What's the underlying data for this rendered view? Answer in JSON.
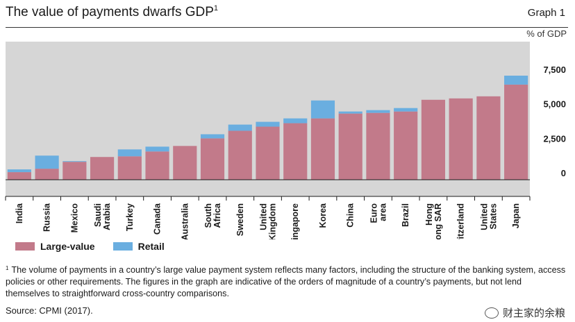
{
  "header": {
    "title": "The value of payments dwarfs GDP",
    "title_sup": "1",
    "graph_label": "Graph 1",
    "unit": "% of GDP"
  },
  "legend": [
    {
      "label": "Large-value",
      "color": "#c27a8a"
    },
    {
      "label": "Retail",
      "color": "#6aaee0"
    }
  ],
  "footnote": {
    "marker": "1",
    "text": "The volume of payments in a country’s large value payment system reflects many factors, including the structure of the banking system, access policies or other requirements. The figures in the graph are indicative of the orders of magnitude of a country’s payments, but not lend themselves to straightforward cross-country comparisons."
  },
  "source": "Source: CPMI (2017).",
  "watermark": "财主家的余粮",
  "colors": {
    "plot_bg": "#d6d6d6",
    "large_value": "#c27a8a",
    "retail": "#6aaee0"
  },
  "chart_data": {
    "type": "bar",
    "stacked": true,
    "title": "The value of payments dwarfs GDP",
    "ylabel": "% of GDP",
    "ylim": [
      0,
      8300
    ],
    "yticks": [
      0,
      2500,
      5000,
      7500
    ],
    "ytick_labels": [
      "0",
      "2,500",
      "5,000",
      "7,500"
    ],
    "y_axis_side": "right",
    "grid": false,
    "legend_position": "bottom-left",
    "categories": [
      "India",
      "Russia",
      "Mexico",
      "Saudi Arabia",
      "Turkey",
      "Canada",
      "Australia",
      "South Africa",
      "Sweden",
      "United Kingdom",
      "Singapore",
      "Korea",
      "China",
      "Euro area",
      "Brazil",
      "Hong Kong SAR",
      "Switzerland",
      "United States",
      "Japan"
    ],
    "series": [
      {
        "name": "Large-value",
        "values": [
          550,
          800,
          1300,
          1650,
          1700,
          2050,
          2450,
          3000,
          3550,
          3850,
          4100,
          4450,
          4800,
          4850,
          4950,
          5800,
          5900,
          6050,
          6900
        ]
      },
      {
        "name": "Retail",
        "values": [
          200,
          950,
          50,
          0,
          500,
          350,
          0,
          300,
          450,
          350,
          350,
          1300,
          150,
          200,
          250,
          0,
          0,
          0,
          650
        ]
      }
    ]
  }
}
